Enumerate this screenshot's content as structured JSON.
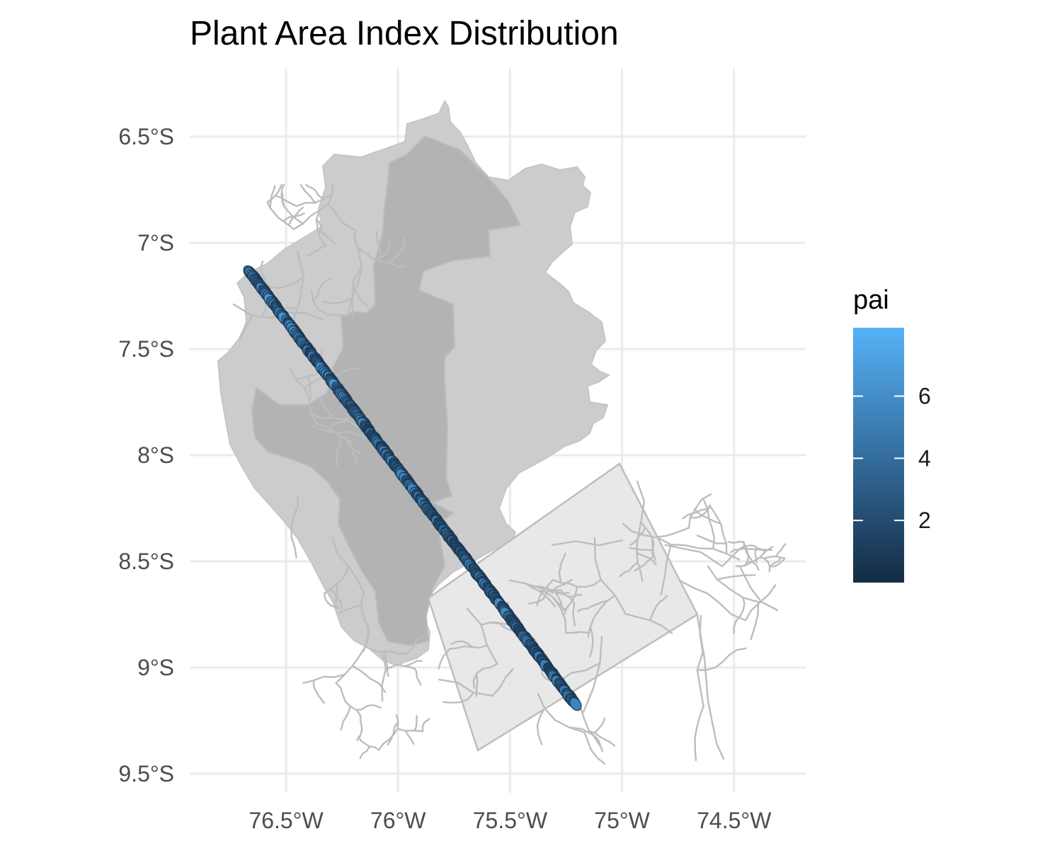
{
  "chart_data": {
    "type": "map",
    "title": "Plant Area Index Distribution",
    "x_ticks": [
      {
        "value": -76.5,
        "label": "76.5°W"
      },
      {
        "value": -76.0,
        "label": "76°W"
      },
      {
        "value": -75.5,
        "label": "75.5°W"
      },
      {
        "value": -75.0,
        "label": "75°W"
      },
      {
        "value": -74.5,
        "label": "74.5°W"
      }
    ],
    "y_ticks": [
      {
        "value": -6.5,
        "label": "6.5°S"
      },
      {
        "value": -7.0,
        "label": "7°S"
      },
      {
        "value": -7.5,
        "label": "7.5°S"
      },
      {
        "value": -8.0,
        "label": "8°S"
      },
      {
        "value": -8.5,
        "label": "8.5°S"
      },
      {
        "value": -9.0,
        "label": "9°S"
      },
      {
        "value": -9.5,
        "label": "9.5°S"
      }
    ],
    "xlim": [
      -76.93,
      -74.18
    ],
    "ylim": [
      -9.59,
      -6.18
    ],
    "grid": true,
    "legend": {
      "title": "pai",
      "position": "right",
      "range": [
        0,
        8.2
      ],
      "ticks": [
        {
          "value": 2,
          "label": "2"
        },
        {
          "value": 4,
          "label": "4"
        },
        {
          "value": 6,
          "label": "6"
        }
      ],
      "low_color": "#132b43",
      "high_color": "#56b1f7"
    },
    "track": {
      "start": {
        "lon": -76.66,
        "lat": -7.14
      },
      "end": {
        "lon": -75.21,
        "lat": -9.17
      },
      "description": "GEDI footprints colored by pai"
    },
    "layers": {
      "boundary_fill": "#cccccc",
      "inner_region_fill": "#b3b3b3",
      "aoi_box_fill": "#e5e5e5",
      "road_color": "#bdbdbd"
    }
  }
}
